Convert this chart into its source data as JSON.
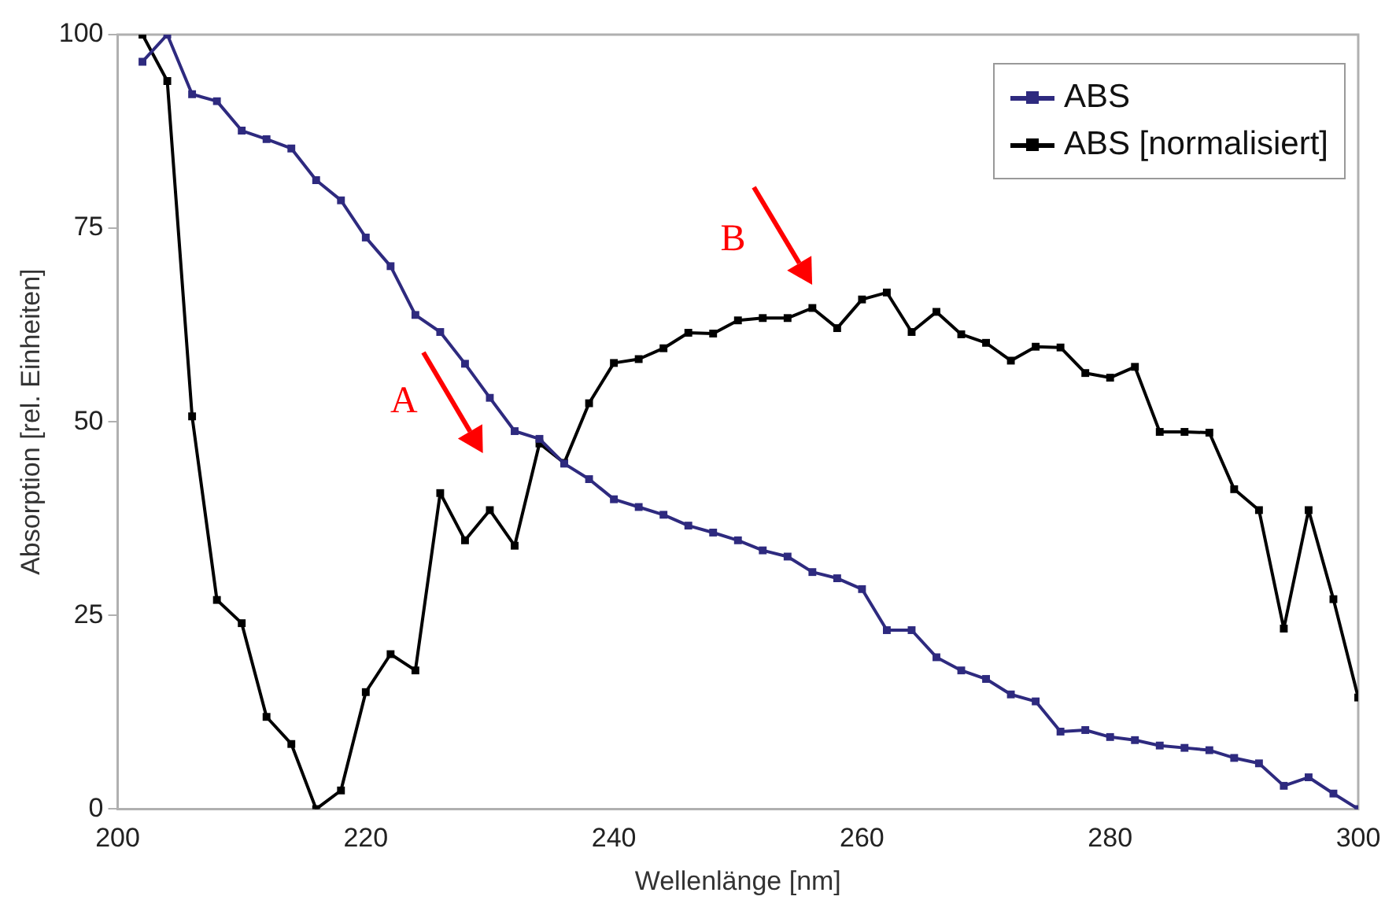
{
  "chart_data": {
    "type": "line",
    "xlabel": "Wellenlänge [nm]",
    "ylabel": "Absorption [rel. Einheiten]",
    "x": [
      202,
      204,
      206,
      208,
      210,
      212,
      214,
      216,
      218,
      220,
      222,
      224,
      226,
      228,
      230,
      232,
      234,
      236,
      238,
      240,
      242,
      244,
      246,
      248,
      250,
      252,
      254,
      256,
      258,
      260,
      262,
      264,
      266,
      268,
      270,
      272,
      274,
      276,
      278,
      280,
      282,
      284,
      286,
      288,
      290,
      292,
      294,
      296,
      298,
      300
    ],
    "series": [
      {
        "name": "ABS",
        "color": "#2e2a7f",
        "values": [
          96.5,
          100,
          92.3,
          91.4,
          87.6,
          86.5,
          85.3,
          81.2,
          78.6,
          73.8,
          70.1,
          63.8,
          61.6,
          57.5,
          53.1,
          48.8,
          47.8,
          44.6,
          42.6,
          40,
          39,
          38,
          36.6,
          35.7,
          34.7,
          33.4,
          32.6,
          30.6,
          29.8,
          28.4,
          23.1,
          23.1,
          19.6,
          17.9,
          16.8,
          14.8,
          13.9,
          10,
          10.2,
          9.3,
          8.9,
          8.2,
          7.9,
          7.6,
          6.6,
          5.9,
          3,
          4.1,
          2,
          0
        ]
      },
      {
        "name": "ABS [normalisiert]",
        "color": "#000000",
        "values": [
          100,
          94,
          50.7,
          27,
          24,
          11.9,
          8.4,
          0,
          2.4,
          15.1,
          20,
          17.9,
          40.8,
          34.7,
          38.6,
          34,
          47.2,
          44.7,
          52.4,
          57.6,
          58.1,
          59.5,
          61.5,
          61.4,
          63.1,
          63.4,
          63.4,
          64.7,
          62.1,
          65.8,
          66.7,
          61.6,
          64.2,
          61.3,
          60.2,
          57.9,
          59.7,
          59.6,
          56.3,
          55.7,
          57.1,
          48.7,
          48.7,
          48.6,
          41.3,
          38.6,
          23.3,
          38.6,
          27.1,
          14.4
        ]
      }
    ],
    "xlim": [
      200,
      300
    ],
    "xticks": [
      200,
      220,
      240,
      260,
      280,
      300
    ],
    "ylim": [
      0,
      100
    ],
    "yticks": [
      0,
      25,
      50,
      75,
      100
    ],
    "grid": false,
    "legend": "top right",
    "marker": "square",
    "line_style": "solid",
    "annotations": [
      "A",
      "B"
    ]
  }
}
